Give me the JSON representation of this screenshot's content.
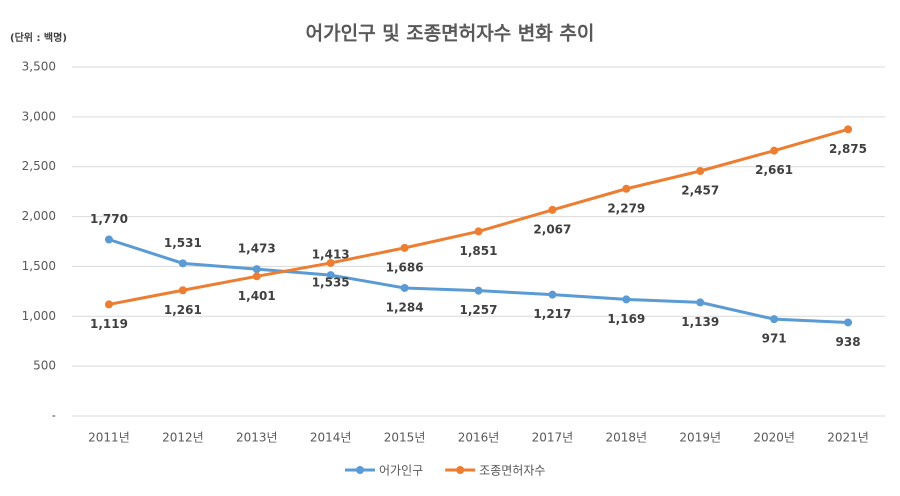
{
  "chart_data": {
    "type": "line",
    "title": "어가인구 및 조종면허자수 변화 추이",
    "y_label": "(단위 : 백명)",
    "categories": [
      "2011년",
      "2012년",
      "2013년",
      "2014년",
      "2015년",
      "2016년",
      "2017년",
      "2018년",
      "2019년",
      "2020년",
      "2021년"
    ],
    "series": [
      {
        "name": "어가인구",
        "color": "#5b9bd5",
        "values": [
          1770,
          1531,
          1473,
          1413,
          1284,
          1257,
          1217,
          1169,
          1139,
          971,
          938
        ],
        "value_labels": [
          "1,770",
          "1,531",
          "1,473",
          "1,413",
          "1,284",
          "1,257",
          "1,217",
          "1,169",
          "1,139",
          "971",
          "938"
        ]
      },
      {
        "name": "조종면허자수",
        "color": "#ed7d31",
        "values": [
          1119,
          1261,
          1401,
          1535,
          1686,
          1851,
          2067,
          2279,
          2457,
          2661,
          2875
        ],
        "value_labels": [
          "1,119",
          "1,261",
          "1,401",
          "1,535",
          "1,686",
          "1,851",
          "2,067",
          "2,279",
          "2,457",
          "2,661",
          "2,875"
        ]
      }
    ],
    "ylim": [
      0,
      3500
    ],
    "yticks": [
      {
        "value": 0,
        "label": "-"
      },
      500,
      {
        "value": 1000,
        "label": "1,000"
      },
      {
        "value": 1500,
        "label": "1,500"
      },
      {
        "value": 2000,
        "label": "2,000"
      },
      {
        "value": 2500,
        "label": "2,500"
      },
      {
        "value": 3000,
        "label": "3,000"
      },
      {
        "value": 3500,
        "label": "3,500"
      }
    ],
    "grid": true,
    "legend": "bottom"
  }
}
